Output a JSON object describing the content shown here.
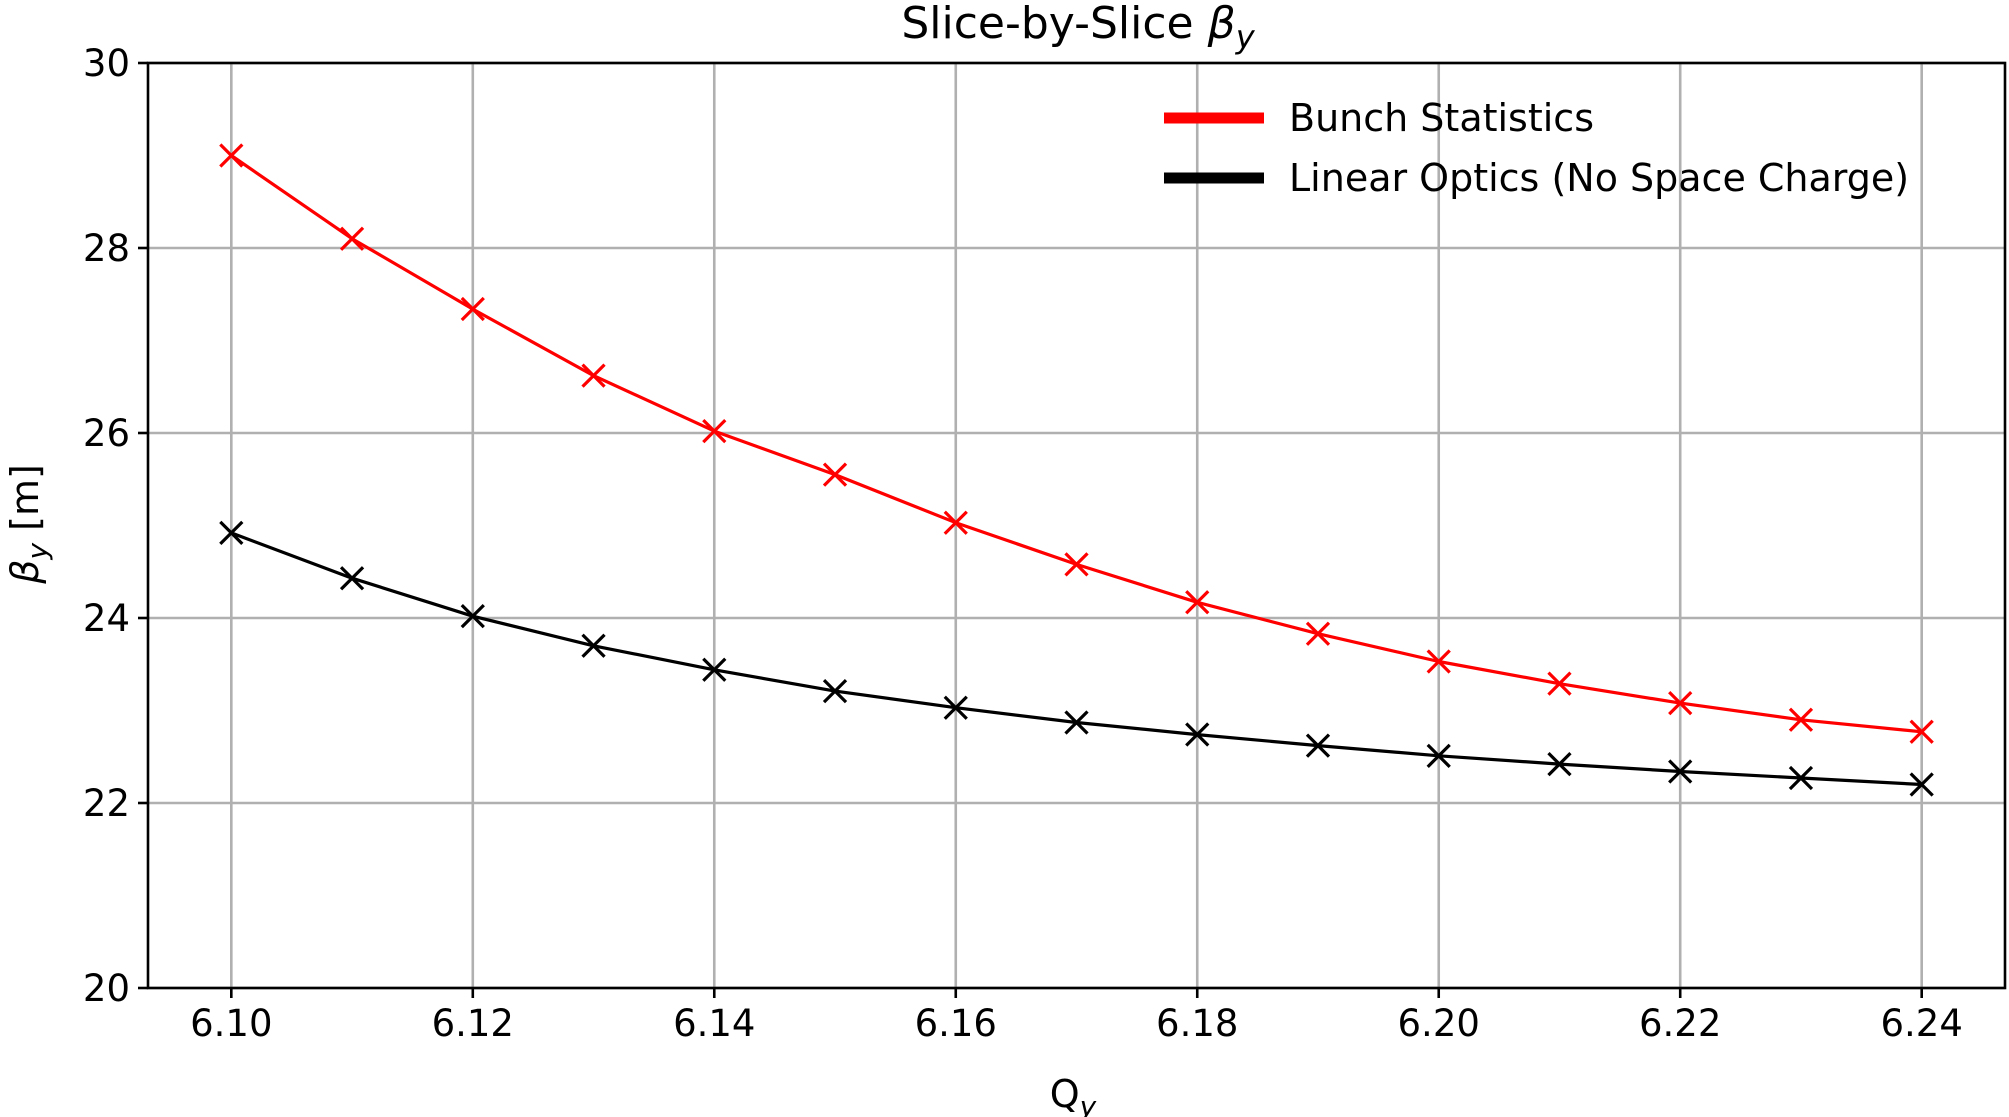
{
  "chart_data": {
    "type": "line",
    "title": "Slice-by-Slice",
    "title_symbol": "β",
    "title_subscript": "y",
    "xlabel": "Q",
    "xlabel_subscript": "y",
    "ylabel": "β",
    "ylabel_subscript": "y",
    "ylabel_unit": " [m]",
    "xlim": [
      6.0931,
      6.2469
    ],
    "ylim": [
      20,
      30
    ],
    "x_ticks": [
      6.1,
      6.12,
      6.14,
      6.16,
      6.18,
      6.2,
      6.22,
      6.24
    ],
    "x_tick_labels": [
      "6.10",
      "6.12",
      "6.14",
      "6.16",
      "6.18",
      "6.20",
      "6.22",
      "6.24"
    ],
    "y_ticks": [
      20,
      22,
      24,
      26,
      28,
      30
    ],
    "y_tick_labels": [
      "20",
      "22",
      "24",
      "26",
      "28",
      "30"
    ],
    "grid": true,
    "legend_position": "top-right",
    "marker": "x",
    "x": [
      6.1,
      6.11,
      6.12,
      6.13,
      6.14,
      6.15,
      6.16,
      6.17,
      6.18,
      6.19,
      6.2,
      6.21,
      6.22,
      6.23,
      6.24
    ],
    "series": [
      {
        "name": "Bunch Statistics",
        "color": "#ff0000",
        "values": [
          29.0,
          28.1,
          27.34,
          26.62,
          26.02,
          25.55,
          25.03,
          24.58,
          24.17,
          23.83,
          23.53,
          23.29,
          23.08,
          22.9,
          22.77
        ]
      },
      {
        "name": "Linear Optics (No Space Charge)",
        "color": "#000000",
        "values": [
          24.92,
          24.43,
          24.02,
          23.7,
          23.44,
          23.21,
          23.03,
          22.87,
          22.74,
          22.62,
          22.51,
          22.42,
          22.34,
          22.27,
          22.2
        ]
      }
    ]
  }
}
